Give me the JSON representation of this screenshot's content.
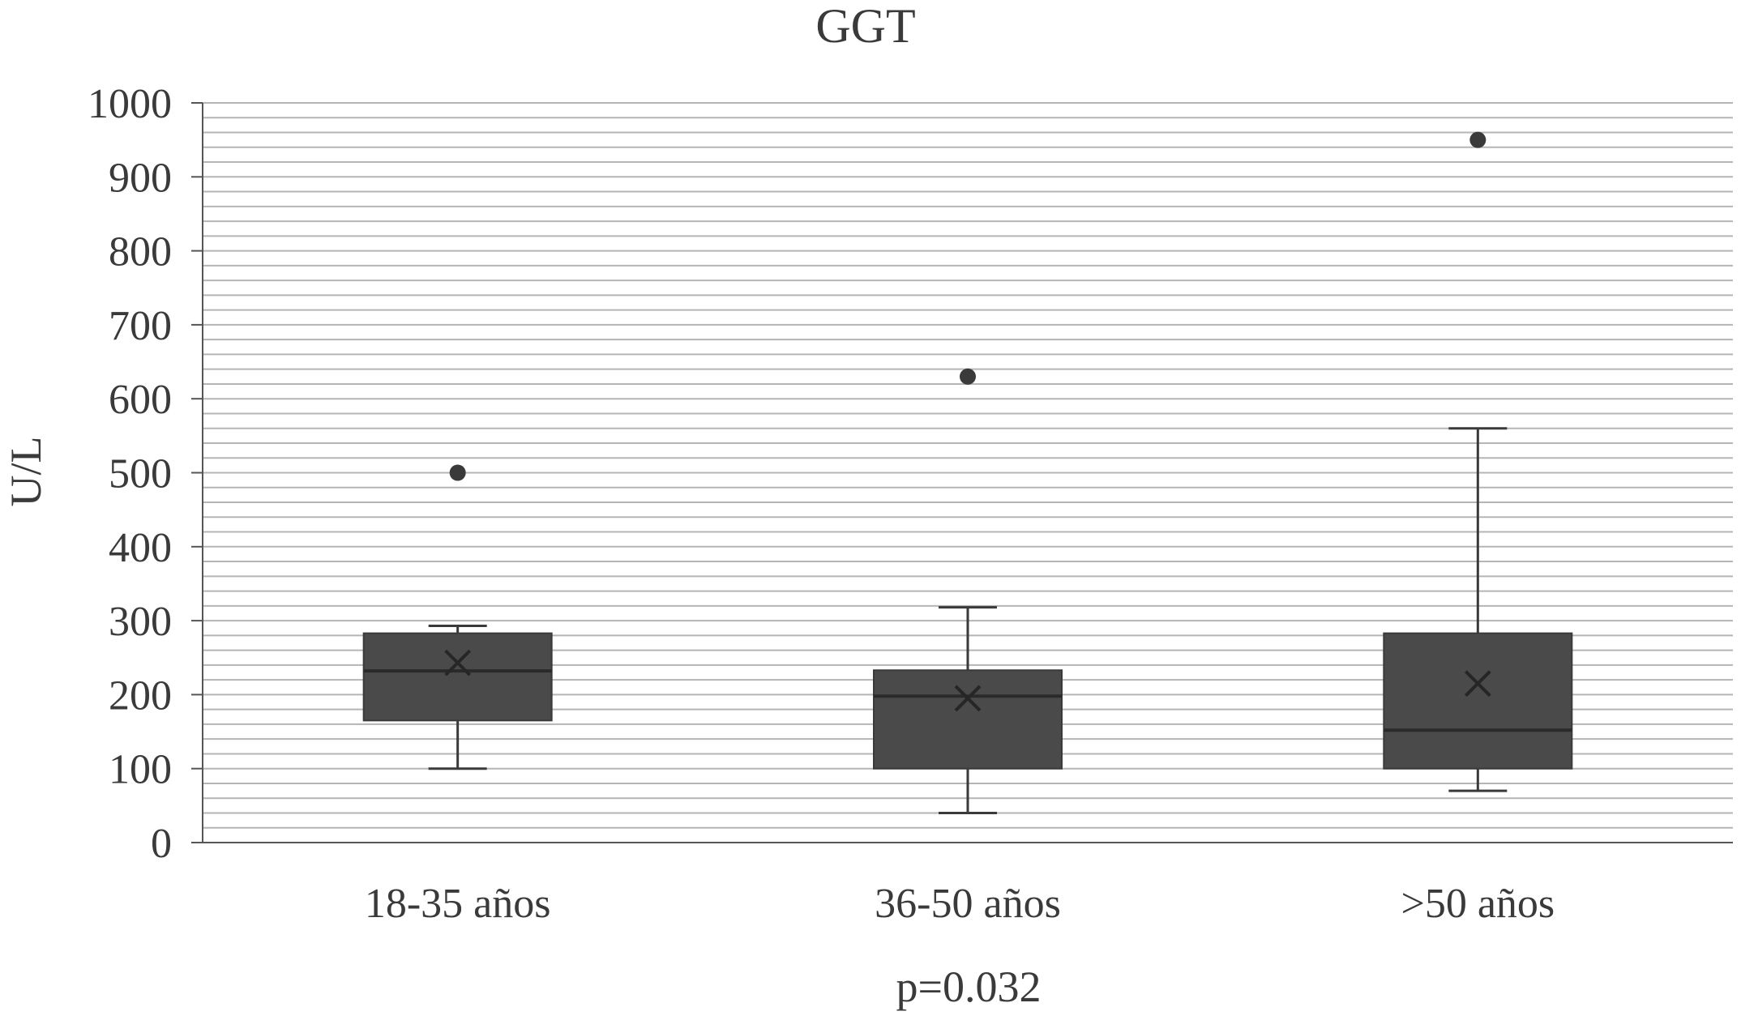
{
  "chart_data": {
    "type": "box",
    "title": "GGT",
    "ylabel": "U/L",
    "xlabel": "",
    "footnote": "p=0.032",
    "ylim": [
      0,
      1000
    ],
    "yticks": [
      0,
      100,
      200,
      300,
      400,
      500,
      600,
      700,
      800,
      900,
      1000
    ],
    "minor_grid_step": 20,
    "grid": true,
    "legend": "none",
    "categories": [
      "18-35 años",
      "36-50 años",
      ">50 años"
    ],
    "boxes": [
      {
        "category": "18-35 años",
        "whisker_low": 100,
        "q1": 165,
        "median": 232,
        "q3": 283,
        "whisker_high": 293,
        "mean": 243,
        "outliers": [
          500
        ]
      },
      {
        "category": "36-50 años",
        "whisker_low": 40,
        "q1": 100,
        "median": 198,
        "q3": 233,
        "whisker_high": 318,
        "mean": 195,
        "outliers": [
          630
        ]
      },
      {
        "category": ">50 años",
        "whisker_low": 70,
        "q1": 100,
        "median": 152,
        "q3": 283,
        "whisker_high": 560,
        "mean": 215,
        "outliers": [
          950
        ]
      }
    ],
    "colors": {
      "box_fill": "#4a4a4a",
      "box_stroke": "#3a3a3a",
      "whisker": "#3a3a3a",
      "grid": "#b5b5b5",
      "axis": "#555555",
      "text": "#3a3a3a"
    }
  }
}
